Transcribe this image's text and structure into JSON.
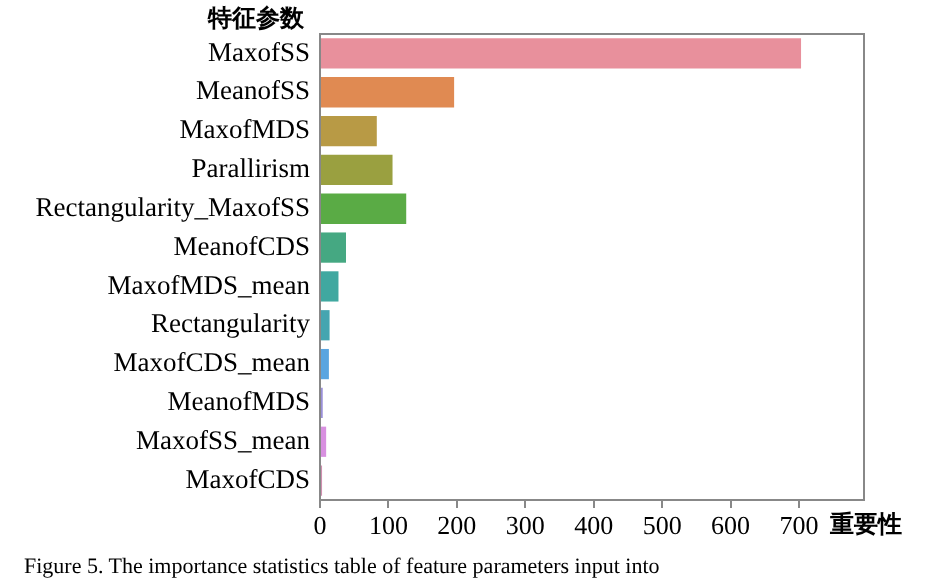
{
  "chart_data": {
    "type": "bar",
    "orientation": "horizontal",
    "ylabel": "特征参数",
    "xlabel": "重要性",
    "categories": [
      "MaxofSS",
      "MeanofSS",
      "MaxofMDS",
      "Parallirism",
      "Rectangularity_MaxofSS",
      "MeanofCDS",
      "MaxofMDS_mean",
      "Rectangularity",
      "MaxofCDS_mean",
      "MeanofMDS",
      "MaxofSS_mean",
      "MaxofCDS"
    ],
    "values": [
      703,
      196,
      83,
      106,
      126,
      38,
      27,
      14,
      13,
      4,
      9,
      3
    ],
    "colors": [
      "#e8909c",
      "#e08a52",
      "#b89a45",
      "#9aa040",
      "#5aab45",
      "#45a882",
      "#40a8a0",
      "#45a5b0",
      "#5aa5e0",
      "#9a90d8",
      "#d890e0",
      "#d090b0"
    ],
    "xlim": [
      0,
      795
    ],
    "xticks": [
      0,
      100,
      200,
      300,
      400,
      500,
      600,
      700
    ],
    "grid": false,
    "legend": false,
    "annotations": [
      "Figure 5. The importance statistics table of feature parameters input into"
    ]
  }
}
